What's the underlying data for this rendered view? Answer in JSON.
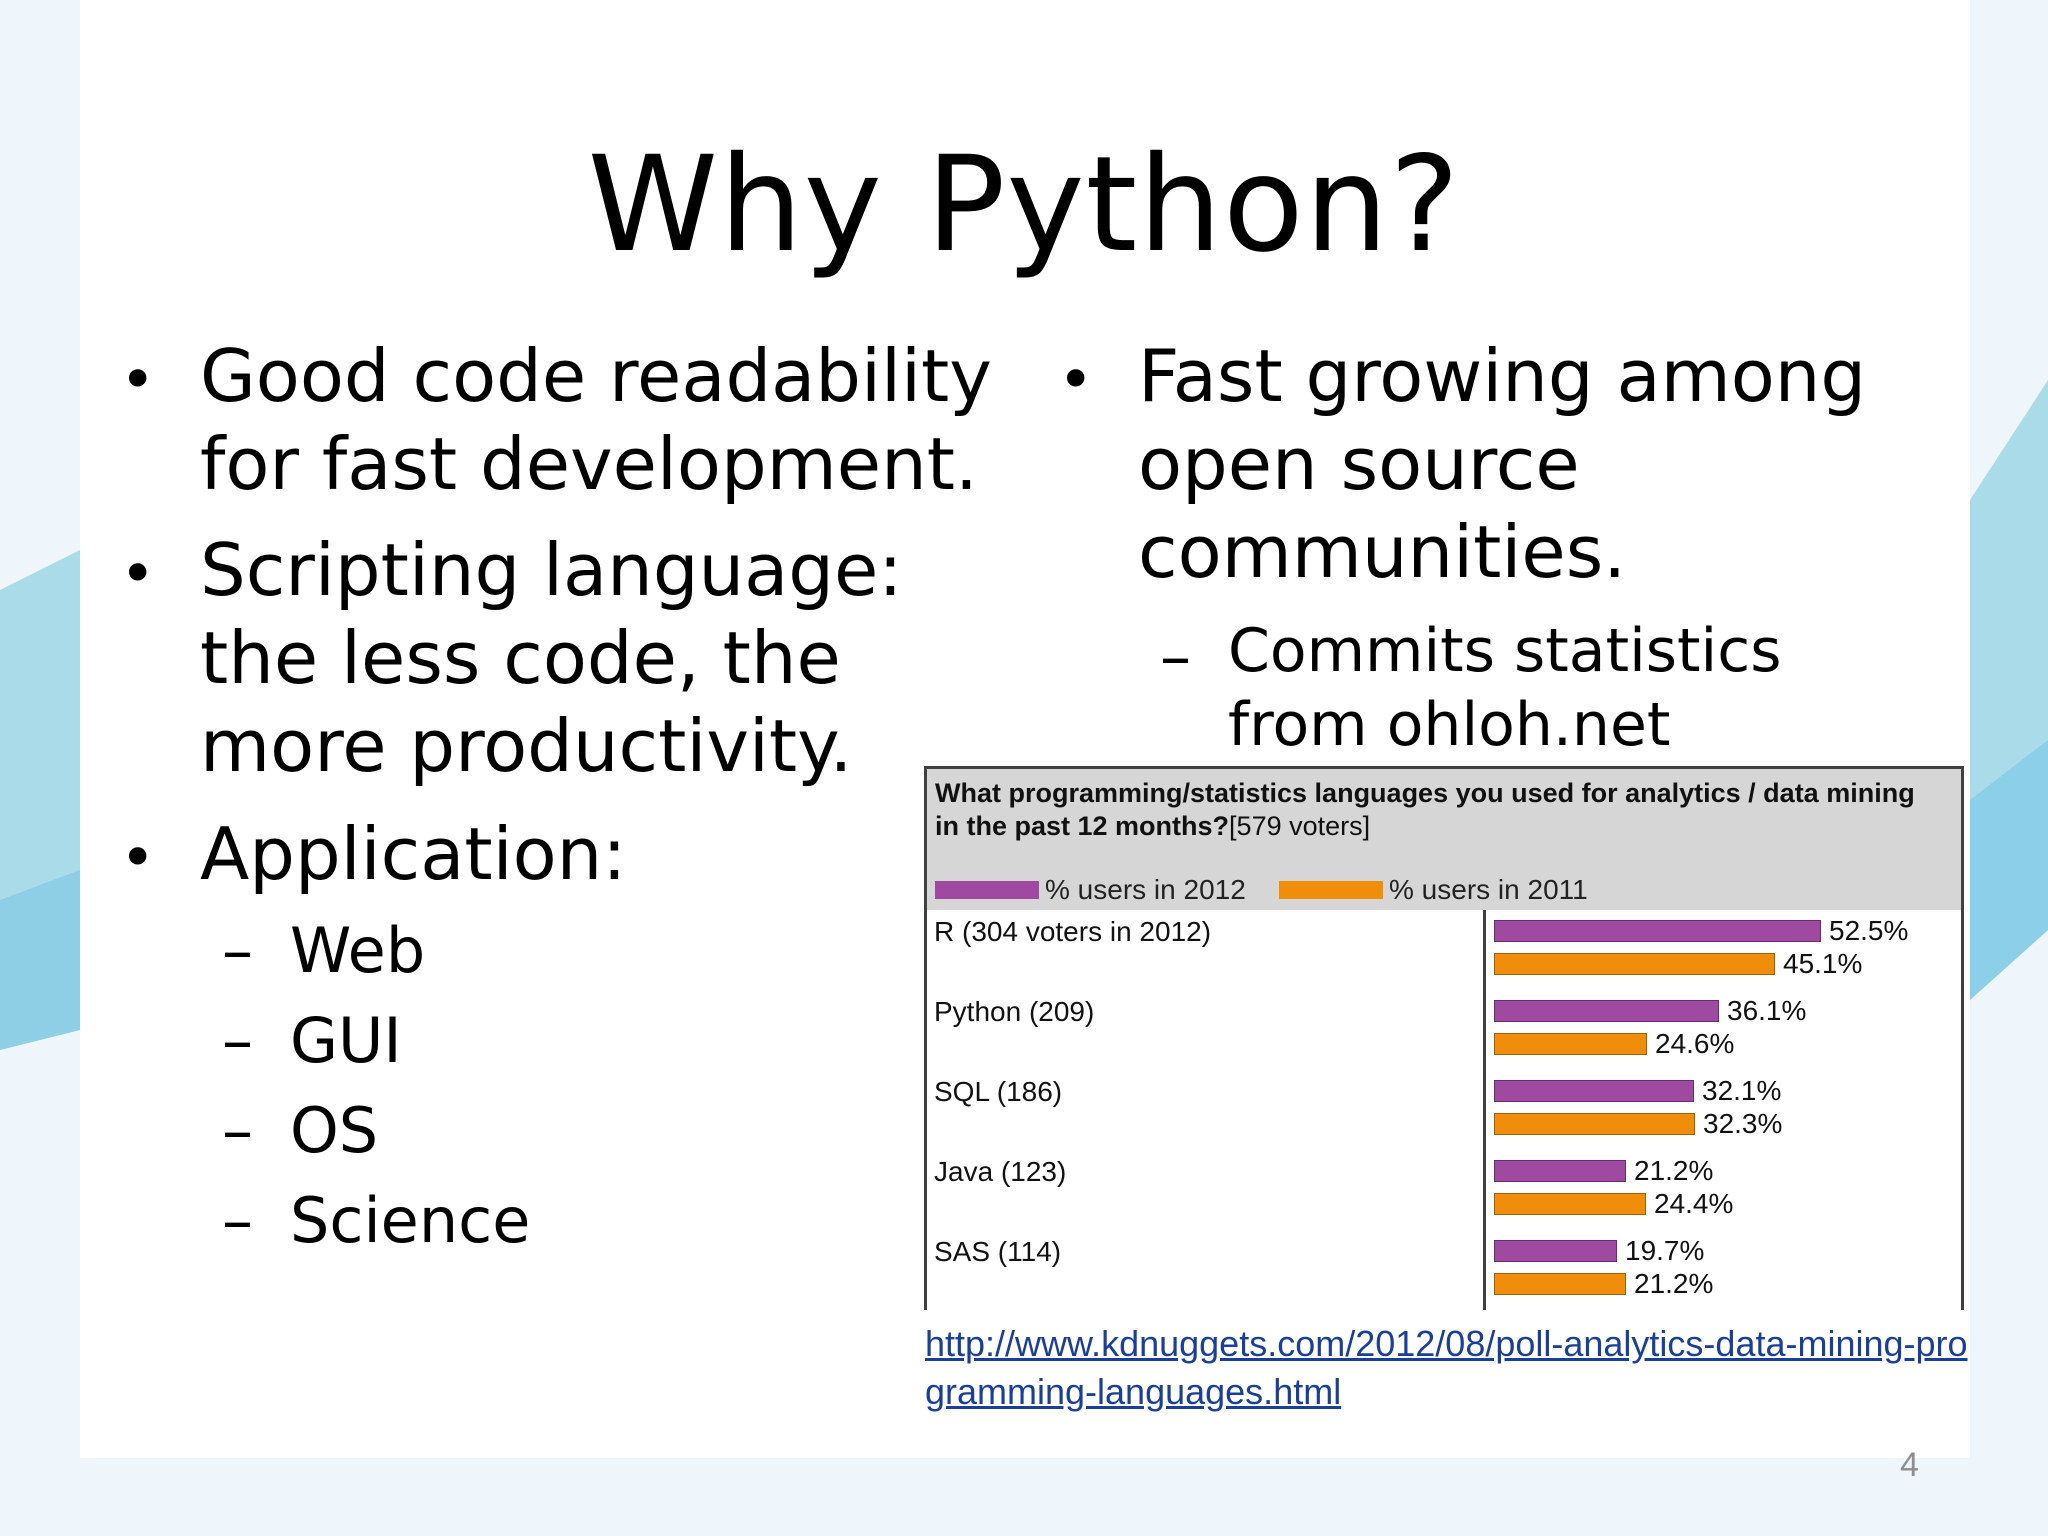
{
  "slide": {
    "title": "Why Python?",
    "left_bullets": {
      "b1_line1": "Good code readability",
      "b1_line2": "for fast development.",
      "b2_line1": "Scripting language:",
      "b2_line2": "the less code, the",
      "b2_line3": "more productivity.",
      "b3_line1": "Application:",
      "sub_items": [
        "Web",
        "GUI",
        "OS",
        "Science"
      ]
    },
    "right_bullets": {
      "b1_line1": "Fast growing among",
      "b1_line2": "open source",
      "b1_line3": "communities.",
      "sub_line1": "Commits statistics",
      "sub_line2": "from ohloh.net"
    },
    "bullet_glyph": "•",
    "dash_glyph": "–",
    "link_text": "http://www.kdnuggets.com/2012/08/poll-analytics-data-mining-programming-languages.html",
    "page_number": "4"
  },
  "chart_data": {
    "type": "bar",
    "title": "What programming/statistics languages you used for analytics / data mining in the past 12 months?",
    "title_suffix": "[579 voters]",
    "categories": [
      "R (304 voters in 2012)",
      "Python (209)",
      "SQL (186)",
      "Java (123)",
      "SAS (114)"
    ],
    "series": [
      {
        "name": "% users in 2012",
        "color": "#9d4aa0",
        "values": [
          52.5,
          36.1,
          32.1,
          21.2,
          19.7
        ]
      },
      {
        "name": "% users in 2011",
        "color": "#f08d0b",
        "values": [
          45.1,
          24.6,
          32.3,
          24.4,
          21.2
        ]
      }
    ],
    "value_labels": [
      [
        "52.5%",
        "45.1%"
      ],
      [
        "36.1%",
        "24.6%"
      ],
      [
        "32.1%",
        "32.3%"
      ],
      [
        "21.2%",
        "24.4%"
      ],
      [
        "19.7%",
        "21.2%"
      ]
    ],
    "legend_position": "top-left",
    "orientation": "horizontal"
  }
}
